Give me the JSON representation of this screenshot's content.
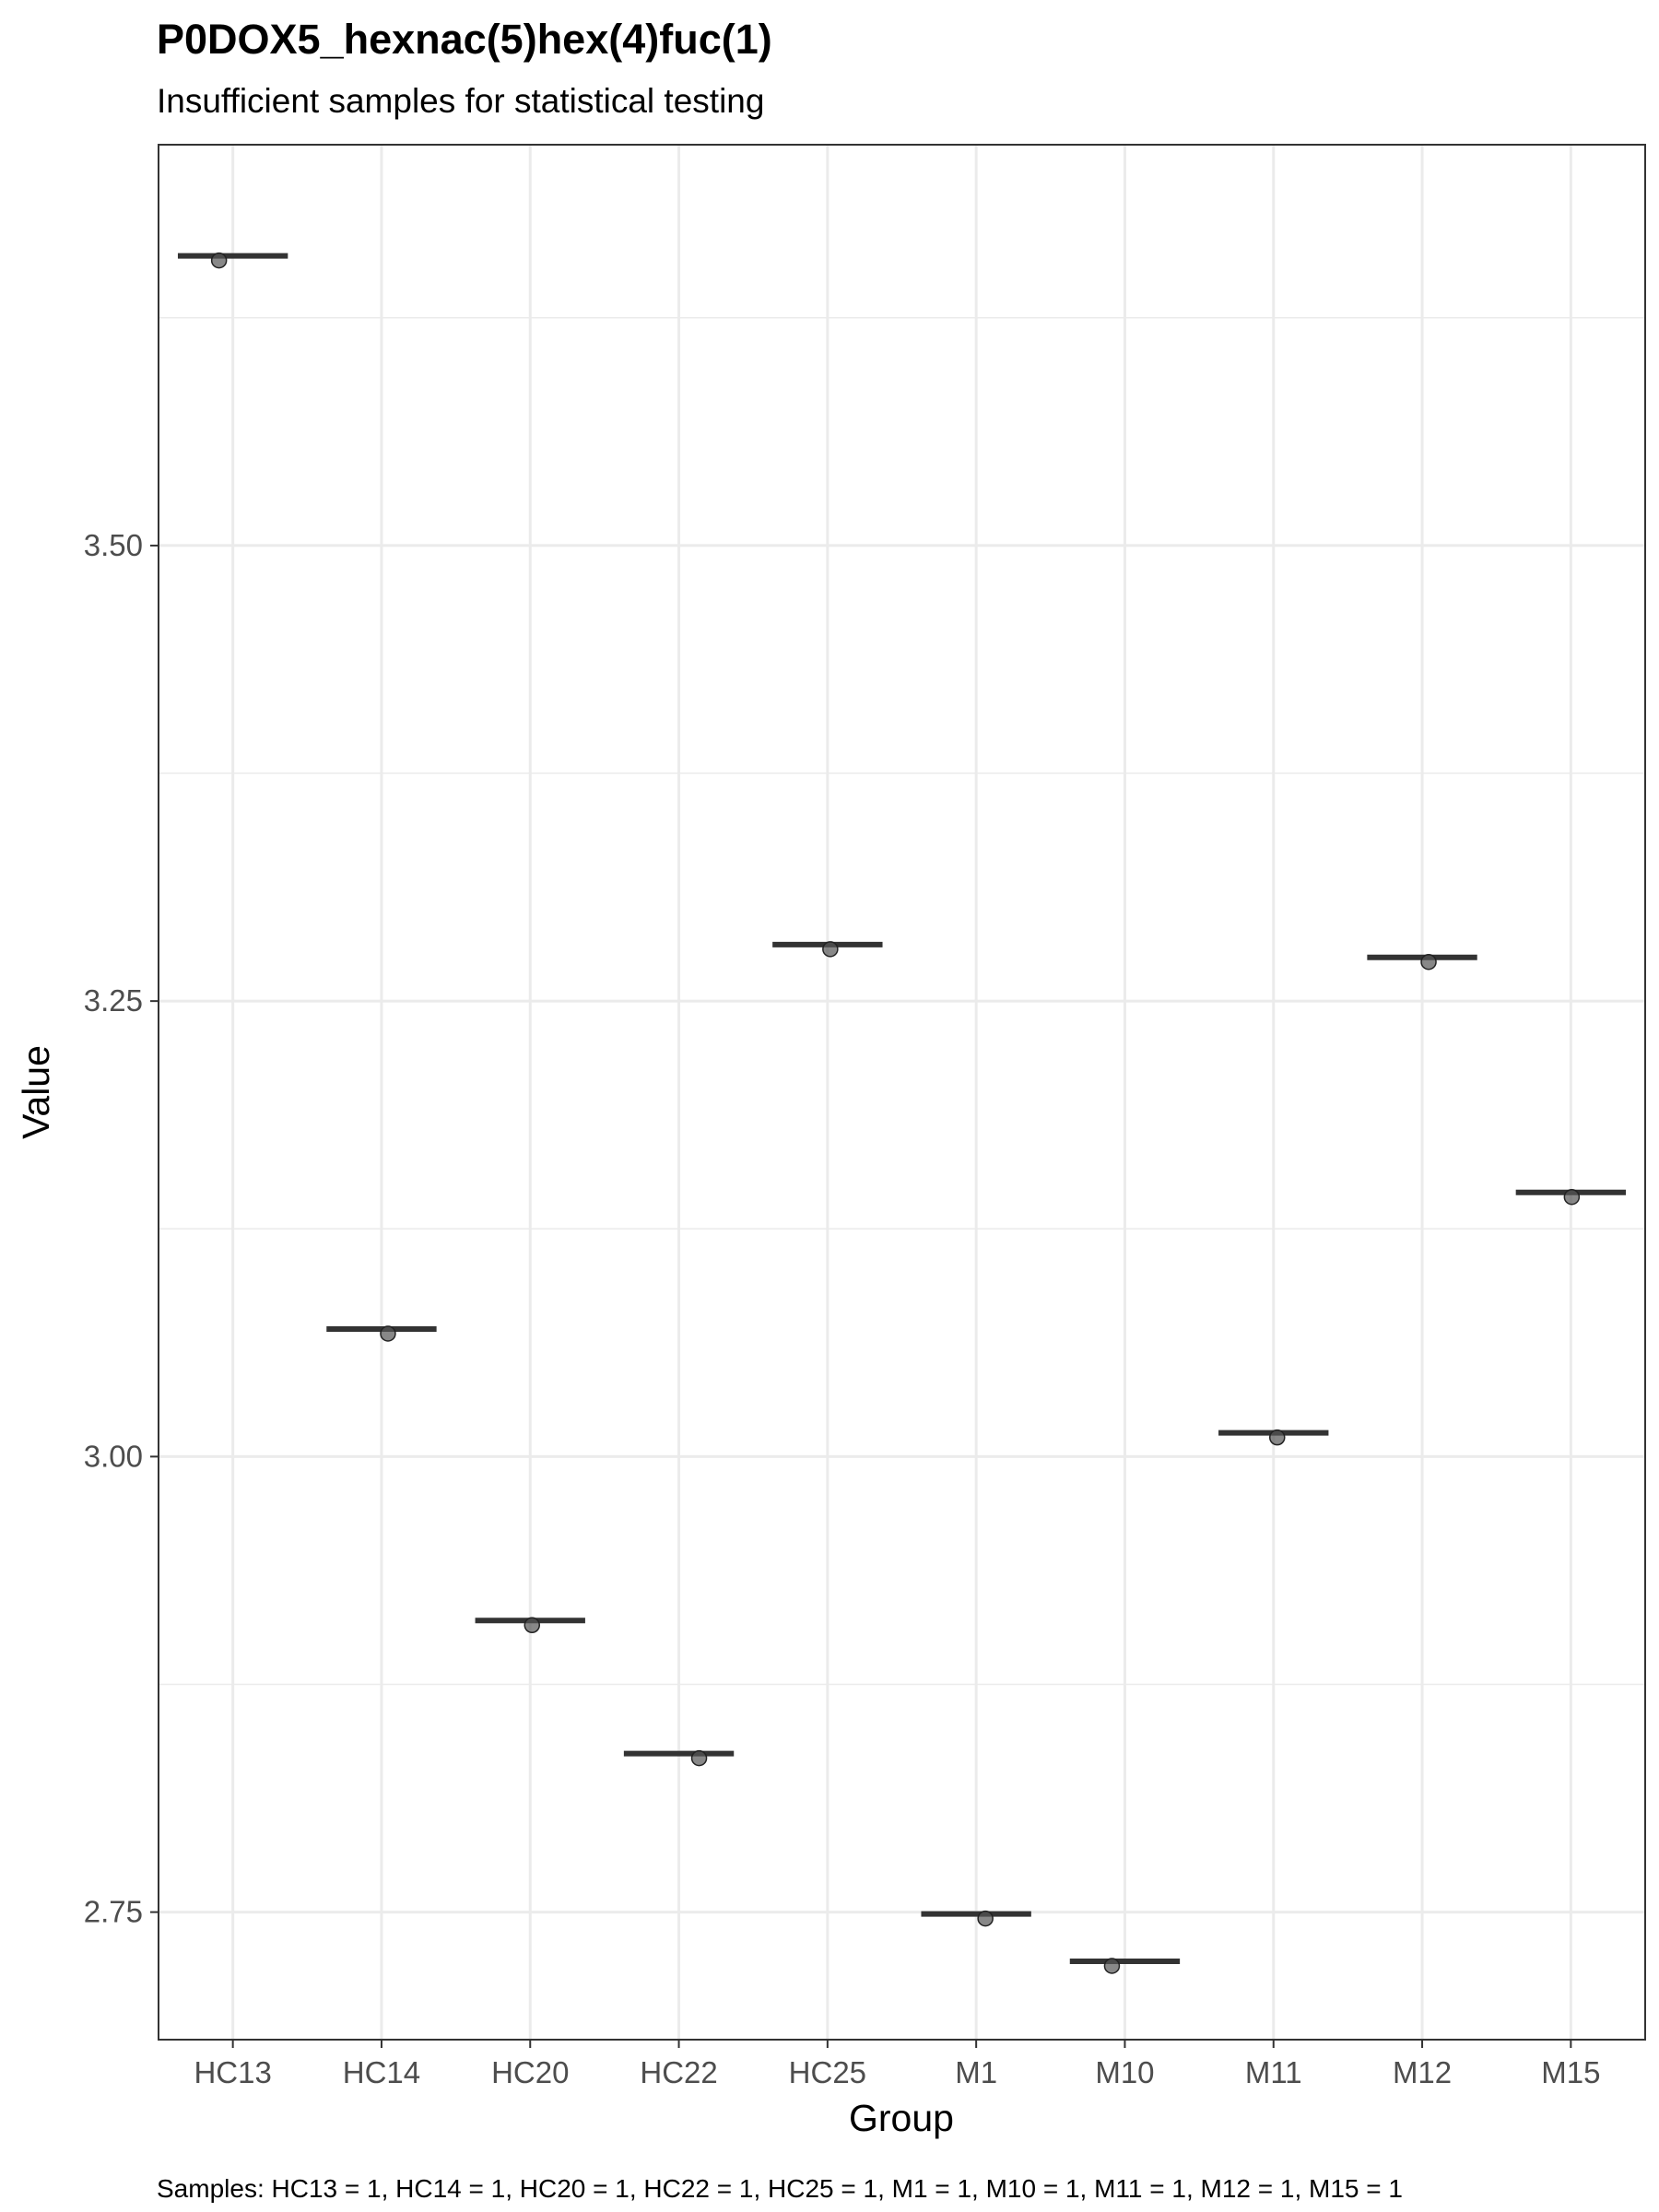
{
  "chart_data": {
    "type": "boxplot",
    "title": "P0DOX5_hexnac(5)hex(4)fuc(1)",
    "subtitle": "Insufficient samples for statistical testing",
    "xlabel": "Group",
    "ylabel": "Value",
    "caption": "Samples: HC13 = 1, HC14 = 1, HC20 = 1, HC22 = 1, HC25 = 1, M1 = 1, M10 = 1, M11 = 1, M12 = 1, M15 = 1",
    "categories": [
      "HC13",
      "HC14",
      "HC20",
      "HC22",
      "HC25",
      "M1",
      "M10",
      "M11",
      "M12",
      "M15"
    ],
    "values": [
      3.659,
      3.07,
      2.91,
      2.837,
      3.281,
      2.749,
      2.723,
      3.013,
      3.274,
      3.145
    ],
    "ylim": [
      2.68,
      3.72
    ],
    "yticks": [
      2.75,
      3.0,
      3.25,
      3.5
    ],
    "ytick_labels": [
      "2.75",
      "3.00",
      "3.25",
      "3.50"
    ],
    "grid": true,
    "legend": "none",
    "colors": {
      "median_line": "#333333",
      "point": "#555555",
      "grid": "#ebebeb",
      "panel_border": "#333333"
    }
  }
}
